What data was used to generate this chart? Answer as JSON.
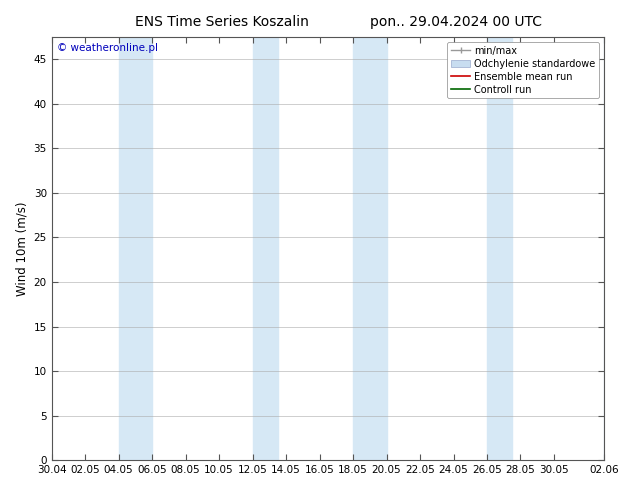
{
  "title_left": "ENS Time Series Koszalin",
  "title_right": "pon.. 29.04.2024 00 UTC",
  "ylabel": "Wind 10m (m/s)",
  "watermark": "© weatheronline.pl",
  "ylim": [
    0,
    47.5
  ],
  "yticks": [
    0,
    5,
    10,
    15,
    20,
    25,
    30,
    35,
    40,
    45
  ],
  "xtick_labels": [
    "30.04",
    "02.05",
    "04.05",
    "06.05",
    "08.05",
    "10.05",
    "12.05",
    "14.05",
    "16.05",
    "18.05",
    "20.05",
    "22.05",
    "24.05",
    "26.05",
    "28.05",
    "30.05",
    "02.06"
  ],
  "xtick_positions": [
    0,
    2,
    4,
    6,
    8,
    10,
    12,
    14,
    16,
    18,
    20,
    22,
    24,
    26,
    28,
    30,
    33
  ],
  "shade_bands": [
    [
      4,
      6
    ],
    [
      12,
      13.5
    ],
    [
      18,
      20
    ],
    [
      26,
      27.5
    ],
    [
      33,
      35
    ]
  ],
  "shade_color": "#d6e8f5",
  "background_color": "#ffffff",
  "grid_color": "#aaaaaa",
  "legend_items": [
    {
      "label": "min/max",
      "color": "#aaaaaa",
      "style": "errorbar"
    },
    {
      "label": "Odchylenie standardowe",
      "color": "#c8ddf0",
      "style": "bar"
    },
    {
      "label": "Ensemble mean run",
      "color": "#cc0000",
      "style": "line"
    },
    {
      "label": "Controll run",
      "color": "#006600",
      "style": "line"
    }
  ],
  "title_fontsize": 10,
  "tick_fontsize": 7.5,
  "ylabel_fontsize": 8.5,
  "watermark_fontsize": 7.5,
  "watermark_color": "#0000bb",
  "legend_fontsize": 7
}
